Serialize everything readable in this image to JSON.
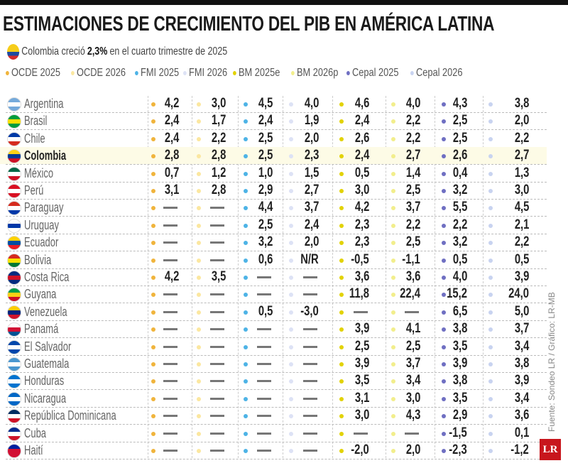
{
  "title": "ESTIMACIONES DE CRECIMIENTO DEL PIB EN AMÉRICA LATINA",
  "subtitle": {
    "prefix": "Colombia creció",
    "highlight": "2,3%",
    "suffix": "en el cuarto trimestre de 2025"
  },
  "source": "Fuente: Sondeo LR / Gráfico: LR-MB",
  "logo": "LR",
  "highlight_row": "Colombia",
  "chart_data": {
    "type": "table",
    "title": "ESTIMACIONES DE CRECIMIENTO DEL PIB EN AMÉRICA LATINA",
    "columns": [
      {
        "name": "OCDE 2025",
        "color": "#f0b43c"
      },
      {
        "name": "OCDE 2026",
        "color": "#fbe7a0"
      },
      {
        "name": "FMI 2025",
        "color": "#4db3e6"
      },
      {
        "name": "FMI 2026",
        "color": "#dde2f5"
      },
      {
        "name": "BM 2025e",
        "color": "#e2d200"
      },
      {
        "name": "BM 2026p",
        "color": "#f2ee8c"
      },
      {
        "name": "Cepal 2025",
        "color": "#6f6fc2"
      },
      {
        "name": "Cepal 2026",
        "color": "#c8d3f0"
      }
    ],
    "rows": [
      {
        "country": "Argentina",
        "flag": [
          "#75aadb",
          "#ffffff",
          "#75aadb"
        ],
        "values": [
          "4,2",
          "3,0",
          "4,5",
          "4,0",
          "4,6",
          "4,0",
          "4,3",
          "3,8"
        ]
      },
      {
        "country": "Brasil",
        "flag": [
          "#009c3b",
          "#ffdf00",
          "#009c3b"
        ],
        "values": [
          "2,4",
          "1,7",
          "2,4",
          "1,9",
          "2,4",
          "2,2",
          "2,5",
          "2,0"
        ]
      },
      {
        "country": "Chile",
        "flag": [
          "#0039a6",
          "#ffffff",
          "#d52b1e"
        ],
        "values": [
          "2,4",
          "2,2",
          "2,5",
          "2,0",
          "2,6",
          "2,2",
          "2,5",
          "2,2"
        ]
      },
      {
        "country": "Colombia",
        "flag": [
          "#fcd116",
          "#003893",
          "#ce1126"
        ],
        "values": [
          "2,8",
          "2,8",
          "2,5",
          "2,3",
          "2,4",
          "2,7",
          "2,6",
          "2,7"
        ]
      },
      {
        "country": "México",
        "flag": [
          "#006847",
          "#ffffff",
          "#ce1126"
        ],
        "values": [
          "0,7",
          "1,2",
          "1,0",
          "1,5",
          "0,5",
          "1,4",
          "0,4",
          "1,3"
        ]
      },
      {
        "country": "Perú",
        "flag": [
          "#d91023",
          "#ffffff",
          "#d91023"
        ],
        "values": [
          "3,1",
          "2,8",
          "2,9",
          "2,7",
          "3,0",
          "2,5",
          "3,2",
          "3,0"
        ]
      },
      {
        "country": "Paraguay",
        "flag": [
          "#d52b1e",
          "#ffffff",
          "#0038a8"
        ],
        "values": [
          "—",
          "—",
          "4,4",
          "3,7",
          "4,2",
          "3,7",
          "5,5",
          "4,5"
        ]
      },
      {
        "country": "Uruguay",
        "flag": [
          "#ffffff",
          "#0038a8",
          "#ffffff"
        ],
        "values": [
          "—",
          "—",
          "2,5",
          "2,4",
          "2,3",
          "2,2",
          "2,2",
          "2,1"
        ]
      },
      {
        "country": "Ecuador",
        "flag": [
          "#ffd100",
          "#034ea2",
          "#ed1c24"
        ],
        "values": [
          "—",
          "—",
          "3,2",
          "2,0",
          "2,3",
          "2,5",
          "3,2",
          "2,2"
        ]
      },
      {
        "country": "Bolivia",
        "flag": [
          "#d52b1e",
          "#f9e300",
          "#007934"
        ],
        "values": [
          "—",
          "—",
          "0,6",
          "N/R",
          "-0,5",
          "-1,1",
          "0,5",
          "0,5"
        ]
      },
      {
        "country": "Costa Rica",
        "flag": [
          "#002b7f",
          "#ce1126",
          "#002b7f"
        ],
        "values": [
          "4,2",
          "3,5",
          "—",
          "—",
          "3,6",
          "3,6",
          "4,0",
          "3,9"
        ]
      },
      {
        "country": "Guyana",
        "flag": [
          "#009e49",
          "#fcd116",
          "#ce1126"
        ],
        "values": [
          "—",
          "—",
          "—",
          "—",
          "11,8",
          "22,4",
          "15,2",
          "24,0"
        ]
      },
      {
        "country": "Venezuela",
        "flag": [
          "#ffcc00",
          "#00247d",
          "#cf142b"
        ],
        "values": [
          "—",
          "—",
          "0,5",
          "-3,0",
          "—",
          "—",
          "6,5",
          "5,0"
        ]
      },
      {
        "country": "Panamá",
        "flag": [
          "#ffffff",
          "#d21034",
          "#005293"
        ],
        "values": [
          "—",
          "—",
          "—",
          "—",
          "3,9",
          "4,1",
          "3,8",
          "3,7"
        ]
      },
      {
        "country": "El Salvador",
        "flag": [
          "#0047ab",
          "#ffffff",
          "#0047ab"
        ],
        "values": [
          "—",
          "—",
          "—",
          "—",
          "2,5",
          "2,5",
          "3,5",
          "3,4"
        ]
      },
      {
        "country": "Guatemala",
        "flag": [
          "#4997d0",
          "#ffffff",
          "#4997d0"
        ],
        "values": [
          "—",
          "—",
          "—",
          "—",
          "3,9",
          "3,7",
          "3,9",
          "3,8"
        ]
      },
      {
        "country": "Honduras",
        "flag": [
          "#0073cf",
          "#ffffff",
          "#0073cf"
        ],
        "values": [
          "—",
          "—",
          "—",
          "—",
          "3,5",
          "3,4",
          "3,8",
          "3,9"
        ]
      },
      {
        "country": "Nicaragua",
        "flag": [
          "#0067c6",
          "#ffffff",
          "#0067c6"
        ],
        "values": [
          "—",
          "—",
          "—",
          "—",
          "3,1",
          "3,0",
          "3,5",
          "3,4"
        ]
      },
      {
        "country": "República Dominicana",
        "flag": [
          "#002d62",
          "#ffffff",
          "#ce1126"
        ],
        "values": [
          "—",
          "—",
          "—",
          "—",
          "3,0",
          "4,3",
          "2,9",
          "3,6"
        ]
      },
      {
        "country": "Cuba",
        "flag": [
          "#002a8f",
          "#ffffff",
          "#cf142b"
        ],
        "values": [
          "—",
          "—",
          "—",
          "—",
          "—",
          "—",
          "-1,5",
          "0,1"
        ]
      },
      {
        "country": "Haití",
        "flag": [
          "#00209f",
          "#d21034",
          "#d21034"
        ],
        "values": [
          "—",
          "—",
          "—",
          "—",
          "-2,0",
          "2,0",
          "-2,3",
          "-1,2"
        ]
      }
    ]
  }
}
